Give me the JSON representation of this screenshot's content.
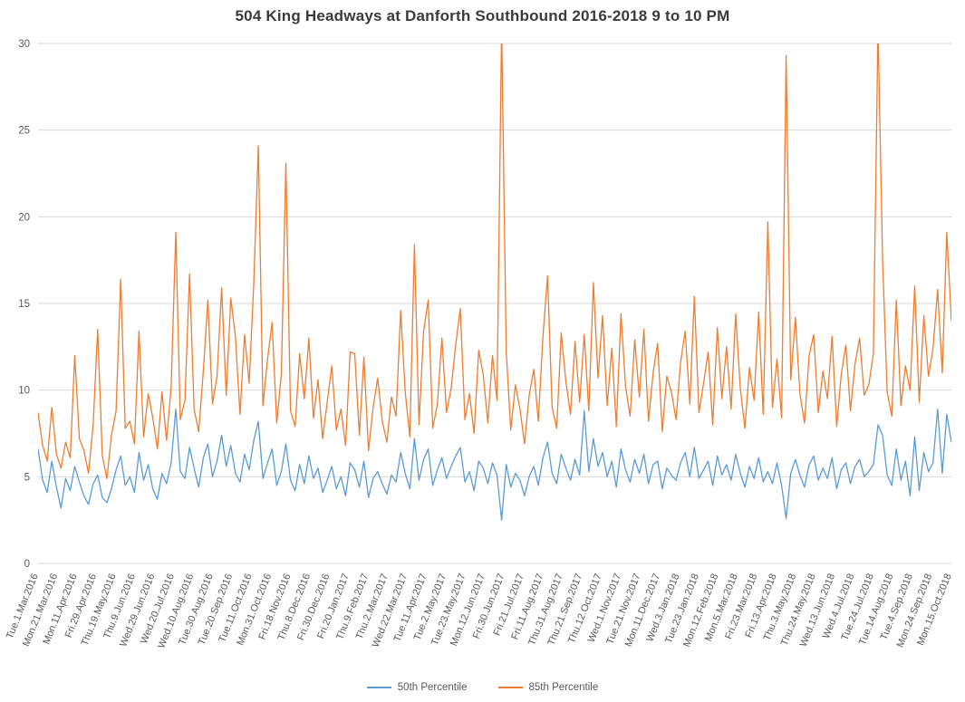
{
  "chart_data": {
    "type": "line",
    "title": "504 King Headways at Danforth Southbound 2016-2018 9 to 10 PM",
    "xlabel": "",
    "ylabel": "",
    "ylim": [
      0,
      30
    ],
    "yticks": [
      0,
      5,
      10,
      15,
      20,
      25,
      30
    ],
    "grid": "horizontal",
    "legend_position": "bottom",
    "colors": {
      "grid": "#D9D9D9",
      "axis_text": "#595959",
      "title_text": "#3b3b3b"
    },
    "xticks": [
      "Tue.1.Mar.2016",
      "Mon.21.Mar.2016",
      "Mon.11.Apr.2016",
      "Fri.29.Apr.2016",
      "Thu.19.May.2016",
      "Thu.9.Jun.2016",
      "Wed.29.Jun.2016",
      "Wed.20.Jul.2016",
      "Wed.10.Aug.2016",
      "Tue.30.Aug.2016",
      "Tue.20.Sep.2016",
      "Tue.11.Oct.2016",
      "Mon.31.Oct.2016",
      "Fri.18.Nov.2016",
      "Thu.8.Dec.2016",
      "Fri.30.Dec.2016",
      "Fri.20.Jan.2017",
      "Thu.9.Feb.2017",
      "Thu.2.Mar.2017",
      "Wed.22.Mar.2017",
      "Tue.11.Apr.2017",
      "Tue.2.May.2017",
      "Tue.23.May.2017",
      "Mon.12.Jun.2017",
      "Fri.30.Jun.2017",
      "Fri.21.Jul.2017",
      "Fri.11.Aug.2017",
      "Thu.31.Aug.2017",
      "Thu.21.Sep.2017",
      "Thu.12.Oct.2017",
      "Wed.1.Nov.2017",
      "Tue.21.Nov.2017",
      "Mon.11.Dec.2017",
      "Wed.3.Jan.2018",
      "Tue.23.Jan.2018",
      "Mon.12.Feb.2018",
      "Mon.5.Mar.2018",
      "Fri.23.Mar.2018",
      "Fri.13.Apr.2018",
      "Thu.3.May.2018",
      "Thu.24.May.2018",
      "Wed.13.Jun.2018",
      "Wed.4.Jul.2018",
      "Tue.24.Jul.2018",
      "Tue.14.Aug.2018",
      "Tue.4.Sep.2018",
      "Mon.24.Sep.2018",
      "Mon.15.Oct.2018"
    ],
    "series": [
      {
        "name": "50th Percentile",
        "color": "#5B9BD5",
        "values": [
          6.6,
          4.8,
          4.1,
          5.9,
          4.4,
          3.2,
          4.9,
          4.2,
          5.6,
          4.7,
          3.9,
          3.4,
          4.6,
          5.1,
          3.8,
          3.5,
          4.3,
          5.4,
          6.2,
          4.5,
          5.0,
          4.1,
          6.4,
          4.8,
          5.7,
          4.3,
          3.7,
          5.2,
          4.6,
          5.8,
          8.9,
          5.3,
          4.9,
          6.7,
          5.5,
          4.4,
          6.1,
          6.9,
          5.0,
          5.9,
          7.4,
          5.6,
          6.8,
          5.2,
          4.7,
          6.3,
          5.4,
          7.1,
          8.2,
          4.9,
          5.8,
          6.6,
          4.5,
          5.3,
          6.9,
          4.8,
          4.2,
          5.7,
          4.6,
          6.2,
          4.9,
          5.5,
          4.1,
          4.8,
          5.6,
          4.3,
          5.0,
          3.9,
          5.8,
          5.4,
          4.4,
          5.9,
          3.8,
          4.9,
          5.3,
          4.6,
          4.0,
          5.1,
          4.7,
          6.4,
          5.2,
          4.3,
          7.2,
          4.8,
          6.0,
          6.6,
          4.5,
          5.4,
          6.1,
          4.9,
          5.6,
          6.2,
          6.7,
          4.7,
          5.3,
          4.2,
          5.9,
          5.5,
          4.6,
          5.8,
          5.1,
          2.5,
          5.7,
          4.4,
          5.2,
          4.8,
          3.9,
          5.0,
          5.6,
          4.5,
          6.1,
          7.0,
          5.2,
          4.6,
          6.3,
          5.5,
          4.8,
          6.0,
          5.1,
          8.8,
          5.3,
          7.2,
          5.6,
          6.4,
          5.0,
          5.9,
          4.4,
          6.6,
          5.4,
          4.7,
          6.0,
          5.2,
          6.3,
          4.6,
          5.7,
          5.9,
          4.3,
          5.5,
          5.1,
          4.8,
          5.8,
          6.4,
          5.0,
          6.7,
          4.9,
          5.4,
          5.9,
          4.5,
          6.2,
          5.1,
          5.7,
          4.8,
          6.3,
          5.2,
          4.4,
          5.6,
          4.9,
          6.1,
          4.7,
          5.3,
          4.6,
          5.8,
          4.5,
          2.6,
          5.2,
          6.0,
          5.1,
          4.4,
          5.7,
          6.2,
          4.8,
          5.5,
          4.9,
          6.1,
          4.3,
          5.4,
          5.8,
          4.6,
          5.6,
          6.0,
          5.0,
          5.3,
          5.7,
          8.0,
          7.4,
          5.1,
          4.5,
          6.6,
          4.8,
          5.9,
          3.9,
          7.3,
          4.2,
          6.4,
          5.3,
          5.8,
          8.9,
          5.2,
          8.6,
          7.0
        ]
      },
      {
        "name": "85th Percentile",
        "color": "#ED7D31",
        "values": [
          8.7,
          6.8,
          5.9,
          9.0,
          6.3,
          5.5,
          7.0,
          6.1,
          12.0,
          7.2,
          6.5,
          5.2,
          8.0,
          13.5,
          6.2,
          4.9,
          7.4,
          8.8,
          16.4,
          7.8,
          8.2,
          6.9,
          13.4,
          7.3,
          9.8,
          8.4,
          6.6,
          9.9,
          7.1,
          10.2,
          19.1,
          8.3,
          9.4,
          16.7,
          8.9,
          7.6,
          11.1,
          15.2,
          9.2,
          10.8,
          15.9,
          9.7,
          15.3,
          13.1,
          8.6,
          13.2,
          10.4,
          16.2,
          24.1,
          9.1,
          11.8,
          13.9,
          8.1,
          10.9,
          23.1,
          8.8,
          7.9,
          12.1,
          9.5,
          13.0,
          8.4,
          10.6,
          7.2,
          9.3,
          11.4,
          7.7,
          8.9,
          6.8,
          12.2,
          12.1,
          7.4,
          11.9,
          6.5,
          9.0,
          10.7,
          8.2,
          7.0,
          9.6,
          8.5,
          14.6,
          9.9,
          7.3,
          18.4,
          8.0,
          13.4,
          15.2,
          7.8,
          9.2,
          13.0,
          8.7,
          10.1,
          12.6,
          14.7,
          8.3,
          9.8,
          7.5,
          12.3,
          10.9,
          8.1,
          12.0,
          9.4,
          31.0,
          12.2,
          7.7,
          10.3,
          8.9,
          6.9,
          9.7,
          11.2,
          8.2,
          13.1,
          16.6,
          9.0,
          7.8,
          13.3,
          10.5,
          8.6,
          12.8,
          9.3,
          13.2,
          8.8,
          16.2,
          10.7,
          14.3,
          9.1,
          12.4,
          7.9,
          14.4,
          10.2,
          8.5,
          12.9,
          9.6,
          13.5,
          8.2,
          11.0,
          12.7,
          7.6,
          10.8,
          9.9,
          8.3,
          11.6,
          13.4,
          9.2,
          15.4,
          8.7,
          10.4,
          12.2,
          8.0,
          13.6,
          9.5,
          12.5,
          8.9,
          14.4,
          10.1,
          7.8,
          11.3,
          9.4,
          14.5,
          8.6,
          19.7,
          9.0,
          11.8,
          8.4,
          29.3,
          10.6,
          14.2,
          9.8,
          8.1,
          12.0,
          13.2,
          8.7,
          11.1,
          9.5,
          13.1,
          7.9,
          10.9,
          12.6,
          8.8,
          11.5,
          13.0,
          9.7,
          10.3,
          12.1,
          31.0,
          17.6,
          9.9,
          8.5,
          15.2,
          9.1,
          11.4,
          10.0,
          16.0,
          9.3,
          14.3,
          10.8,
          12.4,
          15.8,
          11.0,
          19.1,
          14.0
        ]
      }
    ]
  },
  "legend": {
    "item_50th": "50th Percentile",
    "item_85th": "85th Percentile"
  }
}
